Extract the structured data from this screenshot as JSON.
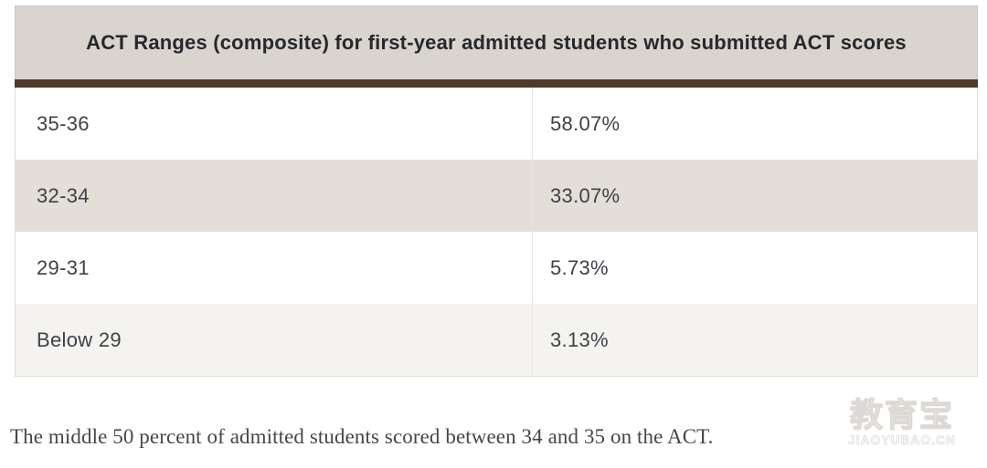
{
  "table": {
    "title": "ACT Ranges (composite) for first-year admitted students who submitted ACT scores",
    "rows": [
      {
        "range": "35-36",
        "share": "58.07%"
      },
      {
        "range": "32-34",
        "share": "33.07%"
      },
      {
        "range": "29-31",
        "share": "5.73%"
      },
      {
        "range": "Below 29",
        "share": "3.13%"
      }
    ]
  },
  "caption": "The middle 50 percent of admitted students scored between 34 and 35 on the ACT.",
  "watermark": {
    "brand_cn": "教育宝",
    "brand_site": "JIAOYUBAO.CN"
  },
  "colors": {
    "header_bg": "#d9d4ce",
    "accent_bar": "#4e3a2b",
    "row_alt_beige": "#e3ded8",
    "row_alt_light": "#f4f3f0",
    "cell_text": "#3d4248",
    "divider": "#e9e6e2"
  },
  "chart_data": {
    "type": "table",
    "title": "ACT Ranges (composite) for first-year admitted students who submitted ACT scores",
    "categories": [
      "35-36",
      "32-34",
      "29-31",
      "Below 29"
    ],
    "values": [
      58.07,
      33.07,
      5.73,
      3.13
    ],
    "value_unit": "%",
    "note": "The middle 50 percent of admitted students scored between 34 and 35 on the ACT."
  }
}
